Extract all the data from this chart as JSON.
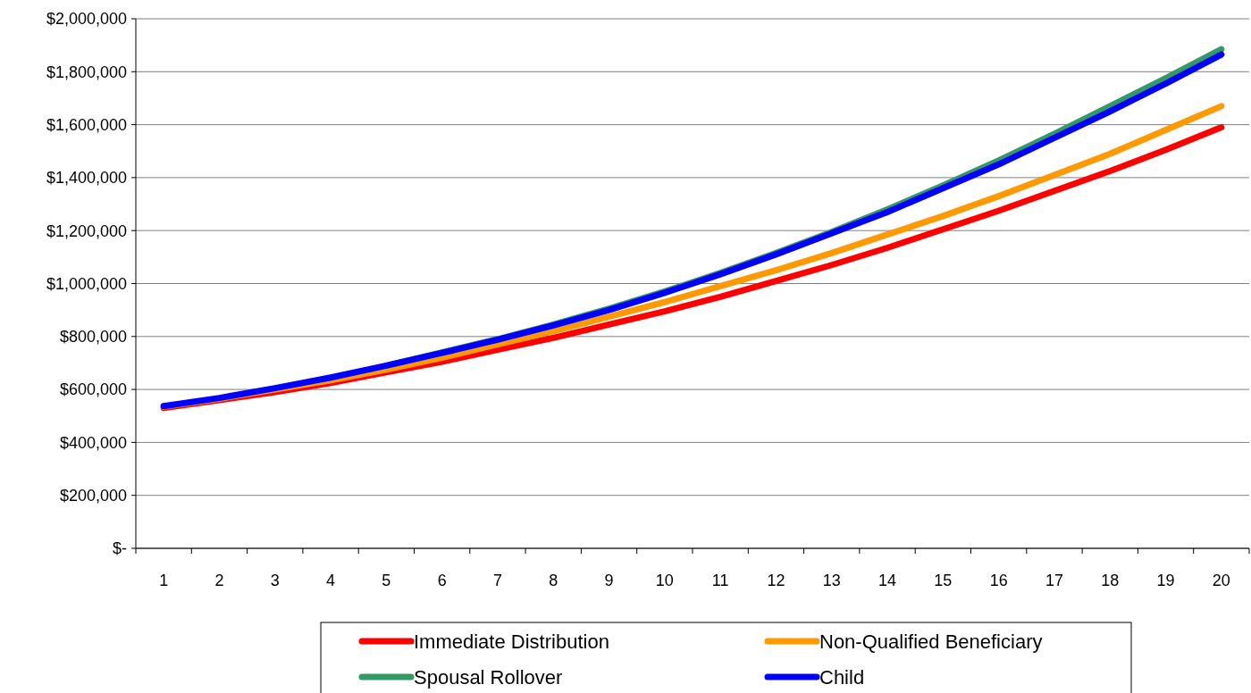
{
  "chart_data": {
    "type": "line",
    "x": [
      1,
      2,
      3,
      4,
      5,
      6,
      7,
      8,
      9,
      10,
      11,
      12,
      13,
      14,
      15,
      16,
      17,
      18,
      19,
      20
    ],
    "xlim": [
      0.5,
      20.5
    ],
    "xticks": [
      1,
      2,
      3,
      4,
      5,
      6,
      7,
      8,
      9,
      10,
      11,
      12,
      13,
      14,
      15,
      16,
      17,
      18,
      19,
      20,
      {
        "value": 0.5,
        "label": null
      },
      {
        "value": 1.5,
        "label": null
      },
      {
        "value": 2.5,
        "label": null
      },
      {
        "value": 3.5,
        "label": null
      },
      {
        "value": 4.5,
        "label": null
      },
      {
        "value": 5.5,
        "label": null
      },
      {
        "value": 6.5,
        "label": null
      },
      {
        "value": 7.5,
        "label": null
      },
      {
        "value": 8.5,
        "label": null
      },
      {
        "value": 9.5,
        "label": null
      },
      {
        "value": 10.5,
        "label": null
      },
      {
        "value": 11.5,
        "label": null
      },
      {
        "value": 12.5,
        "label": null
      },
      {
        "value": 13.5,
        "label": null
      },
      {
        "value": 14.5,
        "label": null
      },
      {
        "value": 15.5,
        "label": null
      },
      {
        "value": 16.5,
        "label": null
      },
      {
        "value": 17.5,
        "label": null
      },
      {
        "value": 18.5,
        "label": null
      },
      {
        "value": 19.5,
        "label": null
      },
      {
        "value": 20.5,
        "label": null
      }
    ],
    "series": [
      {
        "name": "Immediate Distribution",
        "color": "#ff0000",
        "values": [
          530000,
          560000,
          590000,
          625000,
          665000,
          705000,
          750000,
          795000,
          845000,
          895000,
          950000,
          1010000,
          1070000,
          1135000,
          1205000,
          1275000,
          1350000,
          1425000,
          1505000,
          1590000
        ]
      },
      {
        "name": "Non-Qualified Beneficiary",
        "color": "#ff9900",
        "values": [
          535000,
          565000,
          600000,
          635000,
          675000,
          720000,
          770000,
          820000,
          875000,
          930000,
          990000,
          1050000,
          1115000,
          1185000,
          1255000,
          1330000,
          1410000,
          1490000,
          1580000,
          1670000
        ]
      },
      {
        "name": "Spousal Rollover",
        "color": "#339966",
        "values": [
          null,
          null,
          null,
          null,
          690000,
          740000,
          790000,
          845000,
          905000,
          970000,
          1040000,
          1115000,
          1195000,
          1280000,
          1370000,
          1465000,
          1565000,
          1670000,
          1775000,
          1885000
        ]
      },
      {
        "name": "Child",
        "color": "#0000ff",
        "values": [
          537000,
          568000,
          605000,
          645000,
          690000,
          738000,
          788000,
          842000,
          900000,
          965000,
          1035000,
          1110000,
          1190000,
          1270000,
          1360000,
          1450000,
          1550000,
          1650000,
          1755000,
          1865000
        ]
      }
    ],
    "ylim": [
      0,
      2000000
    ],
    "yticks": [
      {
        "value": 0,
        "label": "$-"
      },
      {
        "value": 200000,
        "label": "$200,000"
      },
      {
        "value": 400000,
        "label": "$400,000"
      },
      {
        "value": 600000,
        "label": "$600,000"
      },
      {
        "value": 800000,
        "label": "$800,000"
      },
      {
        "value": 1000000,
        "label": "$1,000,000"
      },
      {
        "value": 1200000,
        "label": "$1,200,000"
      },
      {
        "value": 1400000,
        "label": "$1,400,000"
      },
      {
        "value": 1600000,
        "label": "$1,600,000"
      },
      {
        "value": 1800000,
        "label": "$1,800,000"
      },
      {
        "value": 2000000,
        "label": "$2,000,000"
      }
    ],
    "grid": "y",
    "legend": "bottom",
    "marker": "none",
    "line_style": "solid"
  }
}
